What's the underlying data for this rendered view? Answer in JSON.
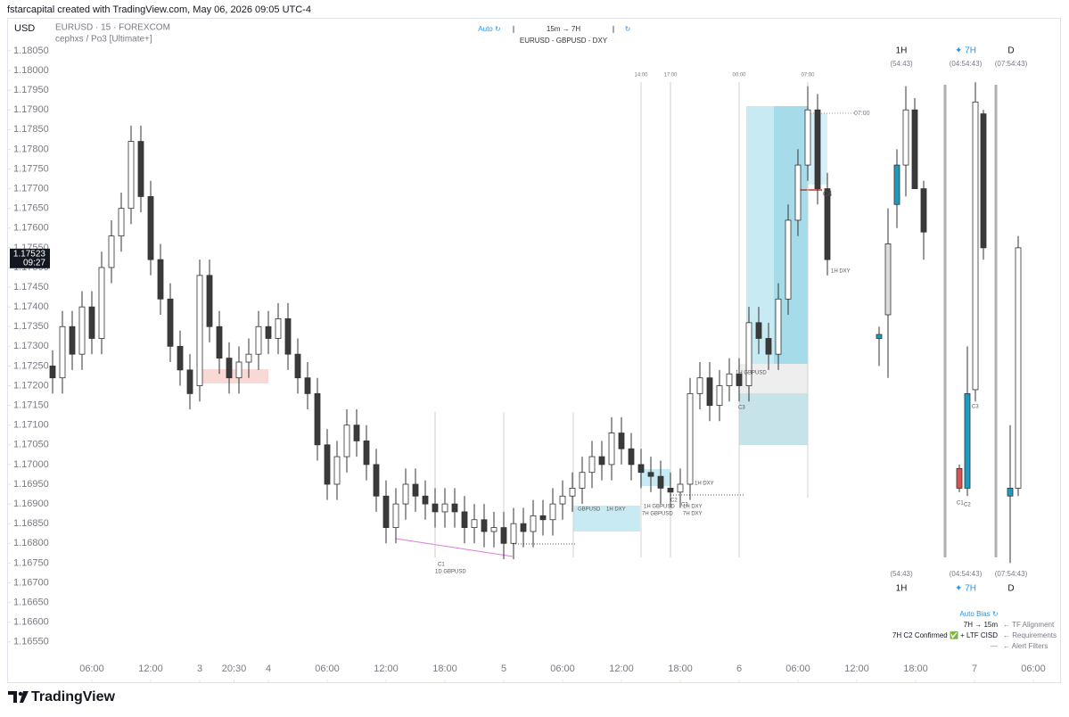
{
  "header": {
    "caption": "fstarcapital created with TradingView.com, May 06, 2026 09:05 UTC-4",
    "currency": "USD",
    "symbol": "EURUSD · 15 · FOREXCOM",
    "indicator": "cephxs / Po3 [Ultimate+]"
  },
  "toolbar": {
    "auto": "Auto ↻",
    "timeframes": "15m → 7H",
    "refresh": "↻",
    "pairs": "EURUSD - GBPUSD - DXY"
  },
  "chart_data": {
    "type": "candlestick",
    "x": [
      2,
      3,
      4,
      5,
      6,
      7,
      8,
      9,
      10,
      11,
      12,
      13,
      14,
      15,
      16,
      17,
      18,
      19,
      20,
      21,
      22,
      23,
      24,
      25,
      26,
      27,
      28,
      29,
      30,
      31,
      32,
      33,
      34,
      35,
      36,
      37,
      38,
      39,
      40,
      41,
      42,
      43,
      44,
      45,
      46,
      47,
      48,
      49,
      50,
      51,
      52,
      53,
      54,
      55,
      56,
      57,
      58,
      59,
      60,
      61,
      62,
      63,
      64,
      65,
      66,
      67,
      68,
      69,
      70,
      71,
      72,
      73,
      74,
      75,
      76,
      77,
      78,
      79,
      80,
      81
    ],
    "open": [
      1.1725,
      1.1722,
      1.1735,
      1.1728,
      1.174,
      1.1732,
      1.175,
      1.1758,
      1.1765,
      1.1782,
      1.1768,
      1.1752,
      1.1742,
      1.173,
      1.1724,
      1.172,
      1.1748,
      1.1735,
      1.1727,
      1.1722,
      1.1726,
      1.1728,
      1.1735,
      1.1732,
      1.1737,
      1.1728,
      1.1722,
      1.1718,
      1.1705,
      1.1695,
      1.1702,
      1.171,
      1.1706,
      1.17,
      1.1692,
      1.1684,
      1.169,
      1.1695,
      1.1692,
      1.169,
      1.1688,
      1.169,
      1.1688,
      1.1684,
      1.1686,
      1.1683,
      1.1684,
      1.168,
      1.1685,
      1.1683,
      1.1687,
      1.1686,
      1.169,
      1.1692,
      1.1694,
      1.1698,
      1.1702,
      1.17,
      1.1708,
      1.1704,
      1.17,
      1.1698,
      1.1697,
      1.1694,
      1.1693,
      1.1695,
      1.1718,
      1.1722,
      1.1715,
      1.172,
      1.1723,
      1.172,
      1.1736,
      1.1732,
      1.1728,
      1.1742,
      1.1762,
      1.1776,
      1.179,
      1.177
    ],
    "high": [
      1.1729,
      1.1739,
      1.1739,
      1.1744,
      1.1744,
      1.1754,
      1.1762,
      1.1769,
      1.1786,
      1.1786,
      1.1772,
      1.1756,
      1.1746,
      1.1734,
      1.1728,
      1.1752,
      1.1752,
      1.1739,
      1.1731,
      1.173,
      1.1732,
      1.1739,
      1.1739,
      1.1741,
      1.1741,
      1.1732,
      1.1726,
      1.1722,
      1.1709,
      1.1706,
      1.1714,
      1.1714,
      1.171,
      1.1704,
      1.1696,
      1.1694,
      1.1699,
      1.1699,
      1.1696,
      1.1694,
      1.1694,
      1.1694,
      1.1692,
      1.169,
      1.169,
      1.1688,
      1.1688,
      1.1689,
      1.1689,
      1.1691,
      1.1691,
      1.1694,
      1.1696,
      1.1698,
      1.1702,
      1.1706,
      1.1706,
      1.1712,
      1.1712,
      1.1708,
      1.1704,
      1.1702,
      1.1701,
      1.1698,
      1.1699,
      1.1722,
      1.1726,
      1.1726,
      1.1724,
      1.1727,
      1.1727,
      1.174,
      1.174,
      1.1736,
      1.1746,
      1.1766,
      1.178,
      1.1796,
      1.1794,
      1.1774
    ],
    "low": [
      1.1718,
      1.1718,
      1.1724,
      1.1724,
      1.1728,
      1.1728,
      1.1746,
      1.1754,
      1.1761,
      1.1764,
      1.1748,
      1.1738,
      1.1726,
      1.172,
      1.1714,
      1.1716,
      1.1731,
      1.1723,
      1.1718,
      1.1718,
      1.1722,
      1.1724,
      1.1728,
      1.1728,
      1.1724,
      1.1718,
      1.1714,
      1.1701,
      1.1691,
      1.1691,
      1.1698,
      1.1702,
      1.1696,
      1.1688,
      1.168,
      1.168,
      1.1686,
      1.1688,
      1.1686,
      1.1684,
      1.1684,
      1.1684,
      1.168,
      1.168,
      1.1679,
      1.1679,
      1.1676,
      1.1676,
      1.1679,
      1.1679,
      1.1682,
      1.1682,
      1.1686,
      1.1688,
      1.169,
      1.1694,
      1.1696,
      1.1696,
      1.17,
      1.1696,
      1.1694,
      1.1693,
      1.169,
      1.1689,
      1.1689,
      1.1691,
      1.1714,
      1.1711,
      1.1711,
      1.1716,
      1.1716,
      1.1716,
      1.1728,
      1.1724,
      1.1724,
      1.1738,
      1.1758,
      1.1772,
      1.1766,
      1.1748
    ],
    "close": [
      1.1722,
      1.1735,
      1.1728,
      1.174,
      1.1732,
      1.175,
      1.1758,
      1.1765,
      1.1782,
      1.1768,
      1.1752,
      1.1742,
      1.173,
      1.1724,
      1.1718,
      1.1748,
      1.1735,
      1.1727,
      1.1722,
      1.1726,
      1.1728,
      1.1735,
      1.1732,
      1.1737,
      1.1728,
      1.1722,
      1.1718,
      1.1705,
      1.1695,
      1.1702,
      1.171,
      1.1706,
      1.17,
      1.1692,
      1.1684,
      1.169,
      1.1695,
      1.1692,
      1.169,
      1.1688,
      1.169,
      1.1688,
      1.1684,
      1.1686,
      1.1683,
      1.1684,
      1.168,
      1.1685,
      1.1683,
      1.1687,
      1.1686,
      1.169,
      1.1692,
      1.1694,
      1.1698,
      1.1702,
      1.17,
      1.1708,
      1.1704,
      1.17,
      1.1698,
      1.1697,
      1.1694,
      1.1693,
      1.1695,
      1.1718,
      1.1722,
      1.1715,
      1.172,
      1.1723,
      1.172,
      1.1736,
      1.1732,
      1.1728,
      1.1742,
      1.1762,
      1.1776,
      1.179,
      1.177,
      1.1752
    ],
    "up_color": "#ffffff",
    "down_color": "#3a3a3a",
    "wick_color": "#333333",
    "xlim": [
      -2.5,
      104
    ],
    "ylim": [
      1.1652,
      1.1812
    ],
    "xticks": [
      {
        "value": 6,
        "label": "06:00"
      },
      {
        "value": 12,
        "label": "12:00"
      },
      {
        "value": 17,
        "label": "3"
      },
      {
        "value": 20.5,
        "label": "20:30"
      },
      {
        "value": 24,
        "label": "4"
      },
      {
        "value": 30,
        "label": "06:00"
      },
      {
        "value": 36,
        "label": "12:00"
      },
      {
        "value": 42,
        "label": "18:00"
      },
      {
        "value": 48,
        "label": "5"
      },
      {
        "value": 54,
        "label": "06:00"
      },
      {
        "value": 60,
        "label": "12:00"
      },
      {
        "value": 66,
        "label": "18:00"
      },
      {
        "value": 72,
        "label": "6"
      },
      {
        "value": 78,
        "label": "06:00"
      },
      {
        "value": 84,
        "label": "12:00"
      },
      {
        "value": 90,
        "label": "18:00"
      },
      {
        "value": 96,
        "label": "7"
      },
      {
        "value": 102,
        "label": "06:00"
      }
    ],
    "yticks": [
      {
        "value": 1.1805,
        "label": "1.18050"
      },
      {
        "value": 1.18,
        "label": "1.18000"
      },
      {
        "value": 1.1795,
        "label": "1.17950"
      },
      {
        "value": 1.179,
        "label": "1.17900"
      },
      {
        "value": 1.1785,
        "label": "1.17850"
      },
      {
        "value": 1.178,
        "label": "1.17800"
      },
      {
        "value": 1.1775,
        "label": "1.17750"
      },
      {
        "value": 1.177,
        "label": "1.17700"
      },
      {
        "value": 1.1765,
        "label": "1.17650"
      },
      {
        "value": 1.176,
        "label": "1.17600"
      },
      {
        "value": 1.1755,
        "label": "1.17550"
      },
      {
        "value": 1.175,
        "label": "1.17500"
      },
      {
        "value": 1.1745,
        "label": "1.17450"
      },
      {
        "value": 1.174,
        "label": "1.17400"
      },
      {
        "value": 1.1735,
        "label": "1.17350"
      },
      {
        "value": 1.173,
        "label": "1.17300"
      },
      {
        "value": 1.1725,
        "label": "1.17250"
      },
      {
        "value": 1.172,
        "label": "1.17200"
      },
      {
        "value": 1.1715,
        "label": "1.17150"
      },
      {
        "value": 1.171,
        "label": "1.17100"
      },
      {
        "value": 1.1705,
        "label": "1.17050"
      },
      {
        "value": 1.17,
        "label": "1.17000"
      },
      {
        "value": 1.1695,
        "label": "1.16950"
      },
      {
        "value": 1.169,
        "label": "1.16900"
      },
      {
        "value": 1.1685,
        "label": "1.16850"
      },
      {
        "value": 1.168,
        "label": "1.16800"
      },
      {
        "value": 1.1675,
        "label": "1.16750"
      },
      {
        "value": 1.167,
        "label": "1.16700"
      },
      {
        "value": 1.1665,
        "label": "1.16650"
      },
      {
        "value": 1.166,
        "label": "1.16600"
      },
      {
        "value": 1.1655,
        "label": "1.16550"
      }
    ],
    "last_price": 1.17523,
    "last_time": "09:27",
    "session_labels": [
      "14:00",
      "17:00",
      "00:00",
      "07:00"
    ],
    "level_label": "07:00",
    "htf": [
      {
        "name": "1H",
        "countdown": "(54:43)",
        "open": [
          1.1732,
          1.1738,
          1.1766,
          1.1776,
          1.179,
          1.177
        ],
        "high": [
          1.1735,
          1.1765,
          1.178,
          1.1796,
          1.1793,
          1.1772
        ],
        "low": [
          1.1725,
          1.1722,
          1.176,
          1.1768,
          1.177,
          1.1752
        ],
        "close": [
          1.1733,
          1.1756,
          1.1776,
          1.179,
          1.177,
          1.1759
        ],
        "colors": [
          "#1e9bbf",
          "#dcdcdc",
          "#1e9bbf",
          "#ffffff",
          "#3a3a3a",
          "#3a3a3a"
        ]
      },
      {
        "name": "✦ 7H",
        "countdown": "(04:54:43)",
        "open": [
          1.1699,
          1.1694,
          1.1719,
          1.1789
        ],
        "high": [
          1.17,
          1.173,
          1.1797,
          1.179
        ],
        "low": [
          1.1693,
          1.1692,
          1.1716,
          1.1752
        ],
        "close": [
          1.1694,
          1.1718,
          1.1792,
          1.1755
        ],
        "colors": [
          "#d9534f",
          "#1e9bbf",
          "#ffffff",
          "#3a3a3a"
        ]
      },
      {
        "name": "D",
        "countdown": "(07:54:43)",
        "open": [
          1.1692,
          1.1694
        ],
        "high": [
          1.171,
          1.1758
        ],
        "low": [
          1.1675,
          1.1692
        ],
        "close": [
          1.1694,
          1.1755
        ],
        "colors": [
          "#1e9bbf",
          "#ffffff"
        ]
      }
    ]
  },
  "annotations": [
    "C4",
    "1H DXY",
    "1H GBPUSD",
    "C3",
    "C2",
    "C3",
    "1H DXY",
    "1H GBPUSD",
    "7H GBPUSD",
    "1H DXY",
    "7H DXY",
    "1H DXY",
    "GBPUSD",
    "C1",
    "1D GBPUSD",
    "C3",
    "C1",
    "C2"
  ],
  "bias_panel": {
    "title": "Auto Bias ↻",
    "alignment": "7H → 15m",
    "alignment_note": "← TF Alignment",
    "requirements": "7H C2 Confirmed ✅ + LTF CISD",
    "requirements_note": "← Requirements",
    "filters": "—",
    "filters_note": "← Alert Filters"
  },
  "footer": {
    "logo": "TradingView"
  }
}
